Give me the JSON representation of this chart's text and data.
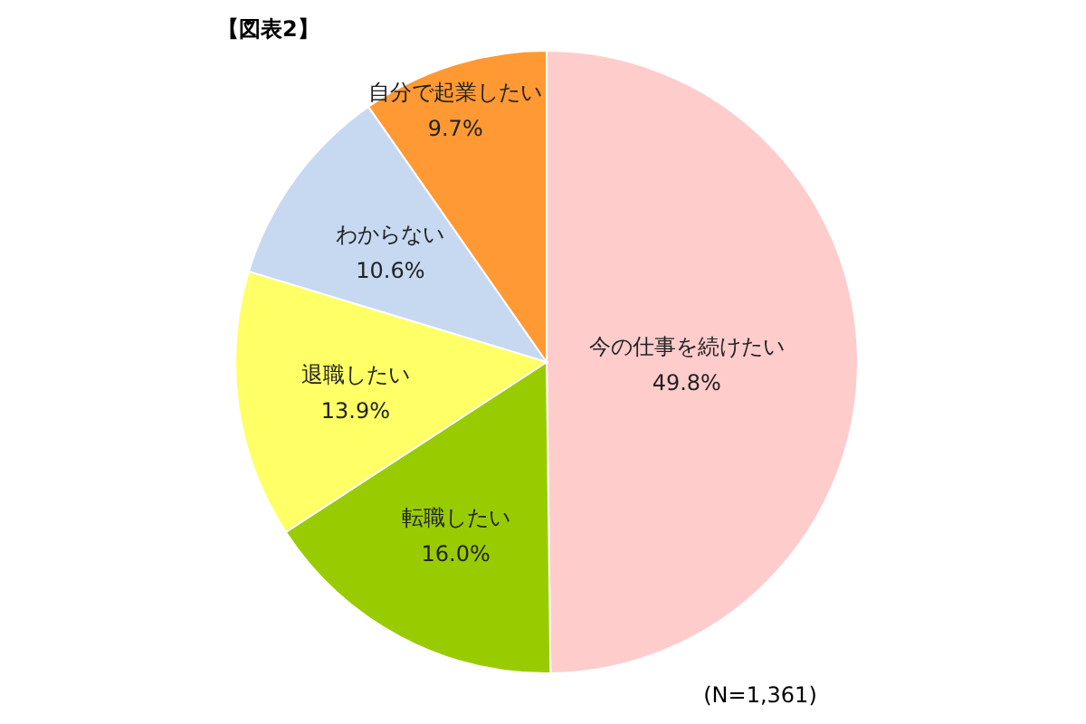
{
  "chart_data": {
    "type": "pie",
    "title": "【図表2】",
    "categories": [
      "今の仕事を続けたい",
      "転職したい",
      "退職したい",
      "わからない",
      "自分で起業したい"
    ],
    "values": [
      49.8,
      16.0,
      13.9,
      10.6,
      9.7
    ],
    "value_labels": [
      "49.8%",
      "16.0%",
      "13.9%",
      "10.6%",
      "9.7%"
    ],
    "colors": [
      "#ffcccc",
      "#99cc00",
      "#ffff66",
      "#c6d9f1",
      "#ff9933"
    ],
    "annotations": [
      "(N=1,361)"
    ]
  }
}
